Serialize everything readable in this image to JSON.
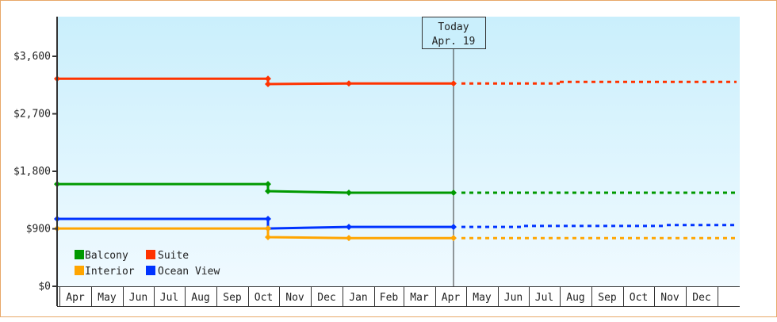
{
  "chart_data": {
    "type": "line",
    "title": "",
    "xlabel": "",
    "ylabel": "",
    "ylim": [
      0,
      4300
    ],
    "y_ticks": [
      {
        "value": 0,
        "label": "$0"
      },
      {
        "value": 900,
        "label": "$900"
      },
      {
        "value": 1800,
        "label": "$1,800"
      },
      {
        "value": 2700,
        "label": "$2,700"
      },
      {
        "value": 3600,
        "label": "$3,600"
      }
    ],
    "x_months": [
      "Apr",
      "May",
      "Jun",
      "Jul",
      "Aug",
      "Sep",
      "Oct",
      "Nov",
      "Dec",
      "Jan",
      "Feb",
      "Mar",
      "Apr",
      "May",
      "Jun",
      "Jul",
      "Aug",
      "Sep",
      "Oct",
      "Nov",
      "Dec"
    ],
    "today_marker": {
      "line1": "Today",
      "line2": "Apr. 19"
    },
    "legend_position": "bottom-left inside plot",
    "grid": false,
    "series": [
      {
        "name": "Suite",
        "color": "#ff3300",
        "history": [
          {
            "x": "Apr",
            "y": 3250
          },
          {
            "x": "Oct",
            "y": 3250
          },
          {
            "x": "Oct",
            "y": 3165
          },
          {
            "x": "Jan",
            "y": 3175
          },
          {
            "x": "Apr (today)",
            "y": 3175
          }
        ],
        "forecast": [
          {
            "x": "Apr (today)",
            "y": 3175
          },
          {
            "x": "Aug",
            "y": 3200
          },
          {
            "x": "Dec",
            "y": 3240
          }
        ]
      },
      {
        "name": "Balcony",
        "color": "#009900",
        "history": [
          {
            "x": "Apr",
            "y": 1600
          },
          {
            "x": "Oct",
            "y": 1600
          },
          {
            "x": "Oct",
            "y": 1490
          },
          {
            "x": "Jan",
            "y": 1465
          },
          {
            "x": "Apr (today)",
            "y": 1465
          }
        ],
        "forecast": [
          {
            "x": "Apr (today)",
            "y": 1465
          },
          {
            "x": "Dec",
            "y": 1465
          }
        ]
      },
      {
        "name": "Ocean View",
        "color": "#0033ff",
        "history": [
          {
            "x": "Apr",
            "y": 1055
          },
          {
            "x": "Oct",
            "y": 1055
          },
          {
            "x": "Oct",
            "y": 905
          },
          {
            "x": "Jan",
            "y": 930
          },
          {
            "x": "Apr (today)",
            "y": 930
          }
        ],
        "forecast": [
          {
            "x": "Apr (today)",
            "y": 930
          },
          {
            "x": "Jun",
            "y": 945
          },
          {
            "x": "Nov",
            "y": 960
          },
          {
            "x": "Dec",
            "y": 960
          }
        ]
      },
      {
        "name": "Interior",
        "color": "#ffa500",
        "history": [
          {
            "x": "Apr",
            "y": 905
          },
          {
            "x": "Oct",
            "y": 905
          },
          {
            "x": "Oct",
            "y": 770
          },
          {
            "x": "Jan",
            "y": 755
          },
          {
            "x": "Apr (today)",
            "y": 755
          }
        ],
        "forecast": [
          {
            "x": "Apr (today)",
            "y": 755
          },
          {
            "x": "Dec",
            "y": 755
          }
        ]
      }
    ]
  },
  "legend": [
    {
      "label": "Balcony",
      "color": "#009900"
    },
    {
      "label": "Suite",
      "color": "#ff3300"
    },
    {
      "label": "Interior",
      "color": "#ffa500"
    },
    {
      "label": "Ocean View",
      "color": "#0033ff"
    }
  ],
  "colors": {
    "frame_border": "#e8a868",
    "plot_top": "#caeffc",
    "plot_bottom": "#f0faff",
    "axis": "#333333"
  }
}
